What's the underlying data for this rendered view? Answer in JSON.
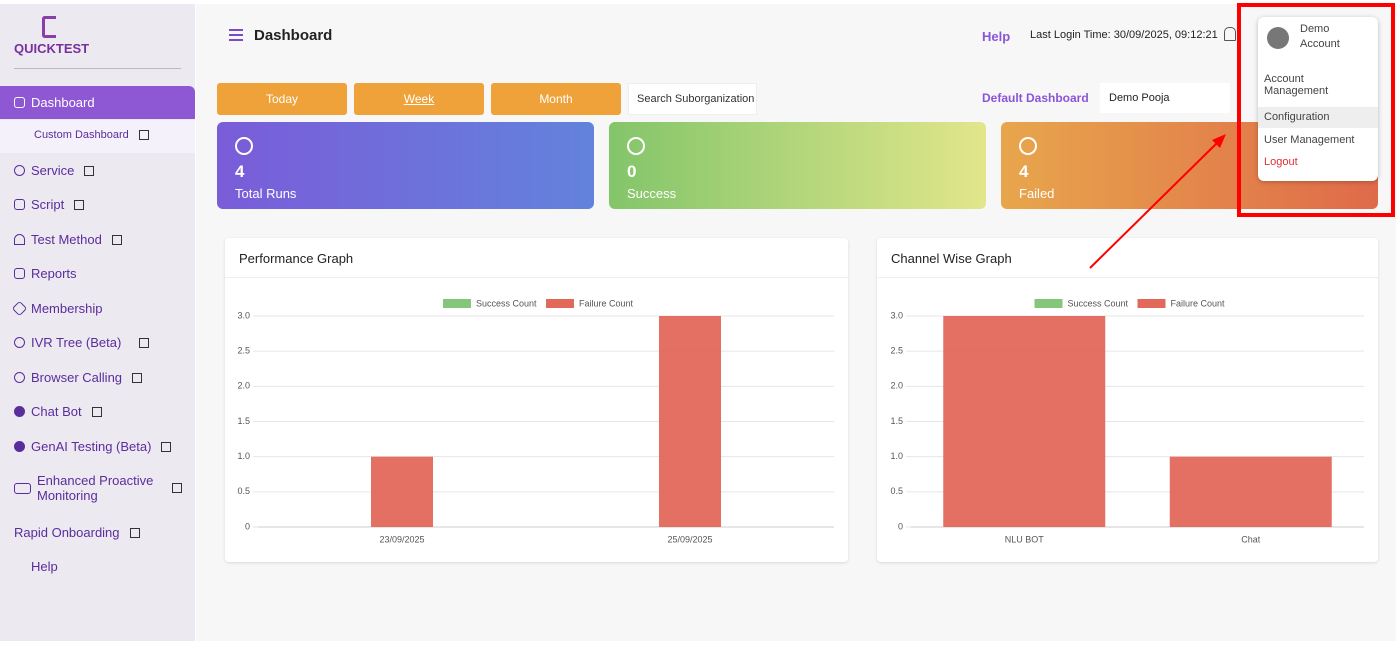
{
  "logo": "QUICKTEST",
  "sidebar": {
    "items": [
      "Dashboard",
      "Custom Dashboard",
      "Service",
      "Script",
      "Test Method",
      "Reports",
      "Membership",
      "IVR Tree (Beta)",
      "Browser Calling",
      "Chat Bot",
      "GenAI Testing (Beta)",
      "Enhanced Proactive Monitoring",
      "Rapid Onboarding",
      "Help"
    ]
  },
  "header": {
    "title": "Dashboard",
    "help": "Help",
    "last_login": "Last Login Time: 30/09/2025, 09:12:21"
  },
  "filters": {
    "buttons": [
      "Today",
      "Week",
      "Month"
    ],
    "search_placeholder": "Search Suborganization",
    "default_dashboard_label": "Default Dashboard",
    "default_dashboard_value": "Demo Pooja"
  },
  "cards": [
    {
      "value": 4,
      "label": "Total Runs"
    },
    {
      "value": 0,
      "label": "Success"
    },
    {
      "value": 4,
      "label": "Failed"
    }
  ],
  "user_menu": {
    "user": "Demo Account",
    "items": [
      "Account Management",
      "Configuration",
      "User Management",
      "Logout"
    ]
  },
  "chart_data": [
    {
      "type": "bar",
      "title": "Performance Graph",
      "categories": [
        "23/09/2025",
        "25/09/2025"
      ],
      "series": [
        {
          "name": "Success Count",
          "color": "#84c77a",
          "values": [
            0,
            0
          ]
        },
        {
          "name": "Failure Count",
          "color": "#e2685a",
          "values": [
            1,
            3
          ]
        }
      ],
      "ylim": [
        0,
        3
      ],
      "yticks": [
        0,
        0.5,
        {
          "value": 1,
          "label": "1.0"
        },
        1.5,
        {
          "value": 2,
          "label": "2.0"
        },
        2.5,
        {
          "value": 3,
          "label": "3.0"
        }
      ],
      "grid": true,
      "legend": "top"
    },
    {
      "type": "bar",
      "title": "Channel Wise Graph",
      "categories": [
        "NLU BOT",
        "Chat"
      ],
      "series": [
        {
          "name": "Success Count",
          "color": "#84c77a",
          "values": [
            0,
            0
          ]
        },
        {
          "name": "Failure Count",
          "color": "#e2685a",
          "values": [
            3,
            1
          ]
        }
      ],
      "ylim": [
        0,
        3
      ],
      "yticks": [
        0,
        0.5,
        {
          "value": 1,
          "label": "1.0"
        },
        1.5,
        {
          "value": 2,
          "label": "2.0"
        },
        2.5,
        {
          "value": 3,
          "label": "3.0"
        }
      ],
      "grid": true,
      "legend": "top"
    }
  ]
}
